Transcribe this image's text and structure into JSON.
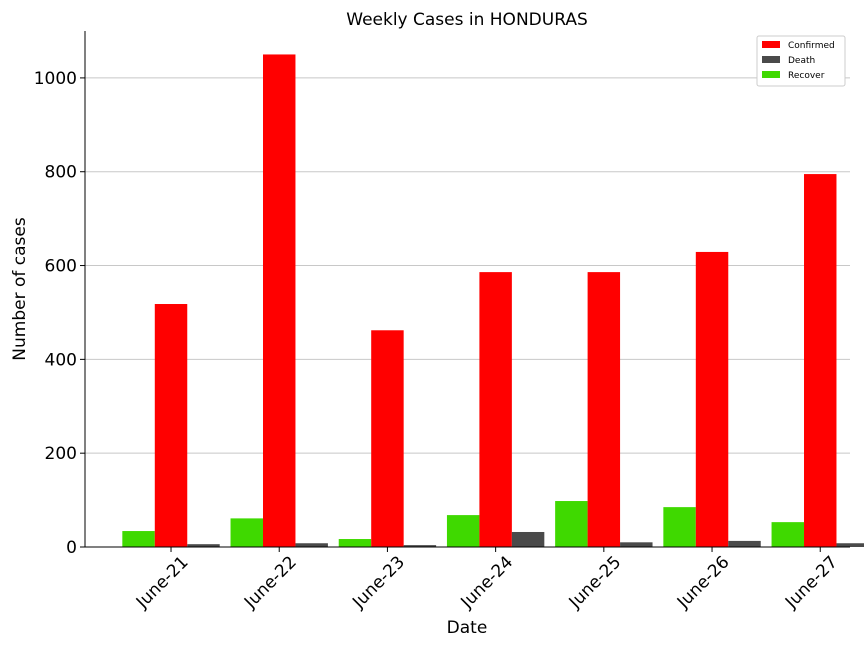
{
  "chart_data": {
    "type": "bar",
    "title": "Weekly Cases in HONDURAS",
    "xlabel": "Date",
    "ylabel": "Number of cases",
    "ylim": [
      0,
      1100
    ],
    "yticks": [
      0,
      200,
      400,
      600,
      800,
      1000
    ],
    "grid": "horizontal",
    "legend_position": "top-right",
    "categories": [
      "June-21",
      "June-22",
      "June-23",
      "June-24",
      "June-25",
      "June-26",
      "June-27"
    ],
    "series": [
      {
        "name": "Recover",
        "color": "#3fd900",
        "values": [
          34,
          61,
          17,
          68,
          98,
          85,
          53
        ]
      },
      {
        "name": "Confirmed",
        "color": "#ff0000",
        "values": [
          518,
          1050,
          462,
          586,
          586,
          629,
          795
        ]
      },
      {
        "name": "Death",
        "color": "#4a4a4a",
        "values": [
          6,
          8,
          4,
          32,
          10,
          13,
          8
        ]
      }
    ],
    "legend_order": [
      "Confirmed",
      "Death",
      "Recover"
    ]
  }
}
